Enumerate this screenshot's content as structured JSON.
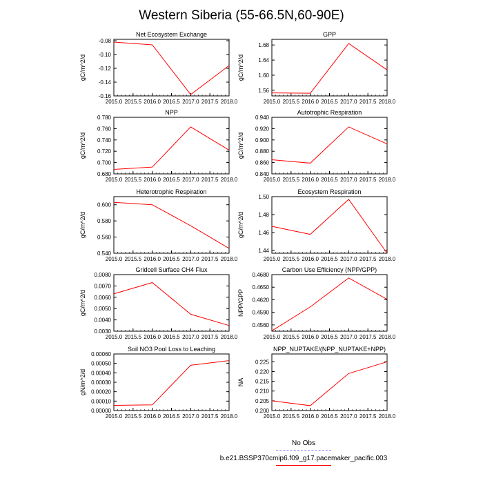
{
  "figure": {
    "title": "Western Siberia (55-66.5N,60-90E)"
  },
  "chart_data": [
    {
      "type": "line",
      "title": "Net Ecosystem Exchange",
      "ylabel": "gC/m^2/d",
      "x": [
        2015,
        2016,
        2017,
        2018
      ],
      "xlim": [
        2015,
        2018
      ],
      "xticks": [
        "2015.0",
        "2015.5",
        "2016.0",
        "2016.5",
        "2017.0",
        "2017.5",
        "2018.0"
      ],
      "ylim": [
        -0.16,
        -0.078
      ],
      "yticks": [
        "-0.08",
        "-0.10",
        "-0.12",
        "-0.14",
        "-0.16"
      ],
      "series": [
        {
          "values": [
            -0.082,
            -0.086,
            -0.158,
            -0.116
          ],
          "color": "#ff0000"
        }
      ]
    },
    {
      "type": "line",
      "title": "GPP",
      "ylabel": "gC/m^2/d",
      "x": [
        2015,
        2016,
        2017,
        2018
      ],
      "xlim": [
        2015,
        2018
      ],
      "xticks": [
        "2015.0",
        "2015.5",
        "2016.0",
        "2016.5",
        "2017.0",
        "2017.5",
        "2018.0"
      ],
      "ylim": [
        1.545,
        1.695
      ],
      "yticks": [
        "1.68",
        "1.64",
        "1.60",
        "1.56"
      ],
      "series": [
        {
          "values": [
            1.553,
            1.552,
            1.684,
            1.614
          ],
          "color": "#ff0000"
        }
      ]
    },
    {
      "type": "line",
      "title": "NPP",
      "ylabel": "gC/m^2/d",
      "x": [
        2015,
        2016,
        2017,
        2018
      ],
      "xlim": [
        2015,
        2018
      ],
      "xticks": [
        "2015.0",
        "2015.5",
        "2016.0",
        "2016.5",
        "2017.0",
        "2017.5",
        "2018.0"
      ],
      "ylim": [
        0.68,
        0.78
      ],
      "yticks": [
        "0.780",
        "0.760",
        "0.740",
        "0.720",
        "0.700",
        "0.680"
      ],
      "series": [
        {
          "values": [
            0.688,
            0.692,
            0.763,
            0.722
          ],
          "color": "#ff0000"
        }
      ]
    },
    {
      "type": "line",
      "title": "Autotrophic Respiration",
      "ylabel": "gC/m^2/d",
      "x": [
        2015,
        2016,
        2017,
        2018
      ],
      "xlim": [
        2015,
        2018
      ],
      "xticks": [
        "2015.0",
        "2015.5",
        "2016.0",
        "2016.5",
        "2017.0",
        "2017.5",
        "2018.0"
      ],
      "ylim": [
        0.84,
        0.94
      ],
      "yticks": [
        "0.940",
        "0.920",
        "0.900",
        "0.880",
        "0.860",
        "0.840"
      ],
      "series": [
        {
          "values": [
            0.865,
            0.859,
            0.923,
            0.893
          ],
          "color": "#ff0000"
        }
      ]
    },
    {
      "type": "line",
      "title": "Heterotrophic Respiration",
      "ylabel": "gC/m^2/d",
      "x": [
        2015,
        2016,
        2017,
        2018
      ],
      "xlim": [
        2015,
        2018
      ],
      "xticks": [
        "2015.0",
        "2015.5",
        "2016.0",
        "2016.5",
        "2017.0",
        "2017.5",
        "2018.0"
      ],
      "ylim": [
        0.54,
        0.61
      ],
      "yticks": [
        "0.600",
        "0.580",
        "0.560",
        "0.540"
      ],
      "series": [
        {
          "values": [
            0.603,
            0.6,
            0.574,
            0.546
          ],
          "color": "#ff0000"
        }
      ]
    },
    {
      "type": "line",
      "title": "Ecosystem Respiration",
      "ylabel": "gC/m^2/d",
      "x": [
        2015,
        2016,
        2017,
        2018
      ],
      "xlim": [
        2015,
        2018
      ],
      "xticks": [
        "2015.0",
        "2015.5",
        "2016.0",
        "2016.5",
        "2017.0",
        "2017.5",
        "2018.0"
      ],
      "ylim": [
        1.437,
        1.5
      ],
      "yticks": [
        "1.50",
        "1.48",
        "1.46",
        "1.44"
      ],
      "series": [
        {
          "values": [
            1.467,
            1.458,
            1.497,
            1.437
          ],
          "color": "#ff0000"
        }
      ]
    },
    {
      "type": "line",
      "title": "Gridcell Surface CH4 Flux",
      "ylabel": "gC/m^2/d",
      "x": [
        2015,
        2016,
        2017,
        2018
      ],
      "xlim": [
        2015,
        2018
      ],
      "xticks": [
        "2015.0",
        "2015.5",
        "2016.0",
        "2016.5",
        "2017.0",
        "2017.5",
        "2018.0"
      ],
      "ylim": [
        0.003,
        0.008
      ],
      "yticks": [
        "0.0080",
        "0.0070",
        "0.0060",
        "0.0050",
        "0.0040",
        "0.0030"
      ],
      "series": [
        {
          "values": [
            0.0063,
            0.0073,
            0.0045,
            0.0035
          ],
          "color": "#ff0000"
        }
      ]
    },
    {
      "type": "line",
      "title": "Carbon Use Efficiency (NPP/GPP)",
      "ylabel": "NPP/GPP",
      "x": [
        2015,
        2016,
        2017,
        2018
      ],
      "xlim": [
        2015,
        2018
      ],
      "xticks": [
        "2015.0",
        "2015.5",
        "2016.0",
        "2016.5",
        "2017.0",
        "2017.5",
        "2018.0"
      ],
      "ylim": [
        0.4545,
        0.468
      ],
      "yticks": [
        "0.4680",
        "0.4650",
        "0.4620",
        "0.4590",
        "0.4560"
      ],
      "series": [
        {
          "values": [
            0.4546,
            0.4603,
            0.4672,
            0.4621
          ],
          "color": "#ff0000"
        }
      ]
    },
    {
      "type": "line",
      "title": "Soil NO3 Pool Loss to Leaching",
      "ylabel": "gN/m^2/d",
      "x": [
        2015,
        2016,
        2017,
        2018
      ],
      "xlim": [
        2015,
        2018
      ],
      "xticks": [
        "2015.0",
        "2015.5",
        "2016.0",
        "2016.5",
        "2017.0",
        "2017.5",
        "2018.0"
      ],
      "ylim": [
        0,
        0.0006
      ],
      "yticks": [
        "0.00060",
        "0.00050",
        "0.00040",
        "0.00030",
        "0.00020",
        "0.00010",
        "0.00000"
      ],
      "series": [
        {
          "values": [
            5.5e-05,
            6e-05,
            0.00048,
            0.00053
          ],
          "color": "#ff0000"
        }
      ]
    },
    {
      "type": "line",
      "title": "NPP_NUPTAKE/(NPP_NUPTAKE+NPP)",
      "ylabel": "NA",
      "x": [
        2015,
        2016,
        2017,
        2018
      ],
      "xlim": [
        2015,
        2018
      ],
      "xticks": [
        "2015.0",
        "2015.5",
        "2016.0",
        "2016.5",
        "2017.0",
        "2017.5",
        "2018.0"
      ],
      "ylim": [
        0.2,
        0.229
      ],
      "yticks": [
        "0.225",
        "0.220",
        "0.215",
        "0.210",
        "0.205",
        "0.200"
      ],
      "series": [
        {
          "values": [
            0.205,
            0.2025,
            0.219,
            0.225
          ],
          "color": "#ff0000"
        }
      ]
    }
  ],
  "legend": {
    "obs_label": "No Obs",
    "obs_color": "#8888ff",
    "model_label": "b.e21.BSSP370cmip6.f09_g17.pacemaker_pacific.003",
    "model_color": "#ff0000"
  }
}
